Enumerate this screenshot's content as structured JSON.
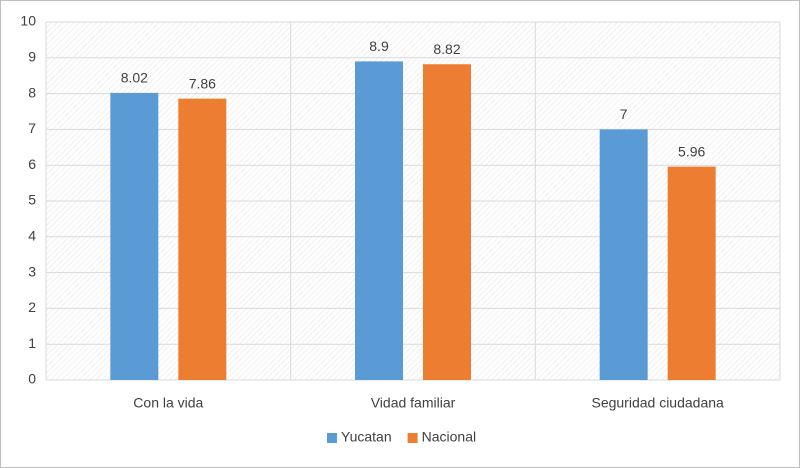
{
  "chart_data": {
    "type": "bar",
    "categories": [
      "Con la vida",
      "Vidad familiar",
      "Seguridad ciudadana"
    ],
    "series": [
      {
        "name": "Yucatan",
        "color": "#5b9bd5",
        "values": [
          8.02,
          8.9,
          7
        ]
      },
      {
        "name": "Nacional",
        "color": "#ed7d31",
        "values": [
          7.86,
          8.82,
          5.96
        ]
      }
    ],
    "ylim": [
      0,
      10
    ],
    "yticks": [
      0,
      1,
      2,
      3,
      4,
      5,
      6,
      7,
      8,
      9,
      10
    ],
    "grid": true,
    "legend": "bottom"
  }
}
